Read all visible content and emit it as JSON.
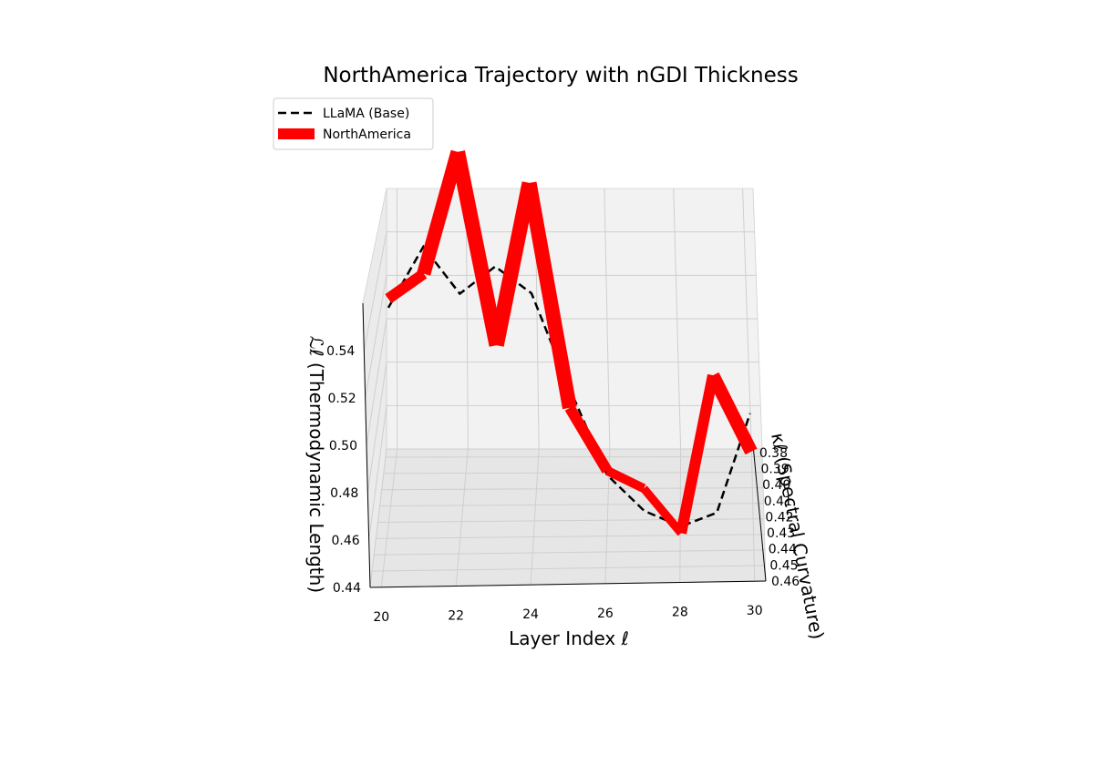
{
  "chart_data": {
    "type": "line",
    "subtype": "3d-line",
    "title": "NorthAmerica Trajectory with nGDI Thickness",
    "xlabel": "Layer Index ℓ",
    "ylabel": "κℓ (Spectral Curvature)",
    "zlabel": "ℒℓ (Thermodynamic Length)",
    "xlim": [
      19.7,
      30.3
    ],
    "ylim": [
      0.375,
      0.46
    ],
    "zlim": [
      0.44,
      0.56
    ],
    "xticks": [
      "20",
      "22",
      "24",
      "26",
      "28",
      "30"
    ],
    "yticks": [
      "0.38",
      "0.39",
      "0.40",
      "0.41",
      "0.42",
      "0.43",
      "0.44",
      "0.45",
      "0.46"
    ],
    "zticks": [
      "0.44",
      "0.46",
      "0.48",
      "0.50",
      "0.52",
      "0.54"
    ],
    "legend_position": "upper-left",
    "series": [
      {
        "name": "LLaMA (Base)",
        "style": "dashed",
        "color": "#000000",
        "x": [
          20,
          21,
          22,
          23,
          24,
          25,
          26,
          27,
          28,
          29,
          30
        ],
        "y": [
          0.41,
          0.41,
          0.41,
          0.41,
          0.41,
          0.41,
          0.41,
          0.41,
          0.41,
          0.41,
          0.41
        ],
        "z": [
          0.528,
          0.555,
          0.534,
          0.546,
          0.534,
          0.492,
          0.453,
          0.437,
          0.43,
          0.436,
          0.48
        ]
      },
      {
        "name": "NorthAmerica",
        "style": "solid",
        "color": "#ff0000",
        "x": [
          20,
          21,
          22,
          23,
          24,
          25,
          26,
          27,
          28,
          29,
          30
        ],
        "y": [
          0.41,
          0.41,
          0.41,
          0.41,
          0.41,
          0.41,
          0.41,
          0.41,
          0.41,
          0.41,
          0.41
        ],
        "z": [
          0.532,
          0.543,
          0.597,
          0.511,
          0.583,
          0.483,
          0.455,
          0.447,
          0.427,
          0.497,
          0.463
        ],
        "thickness": [
          0.55,
          0.6,
          1.0,
          0.75,
          1.0,
          0.7,
          0.45,
          0.4,
          0.35,
          0.8,
          0.7
        ]
      }
    ]
  }
}
